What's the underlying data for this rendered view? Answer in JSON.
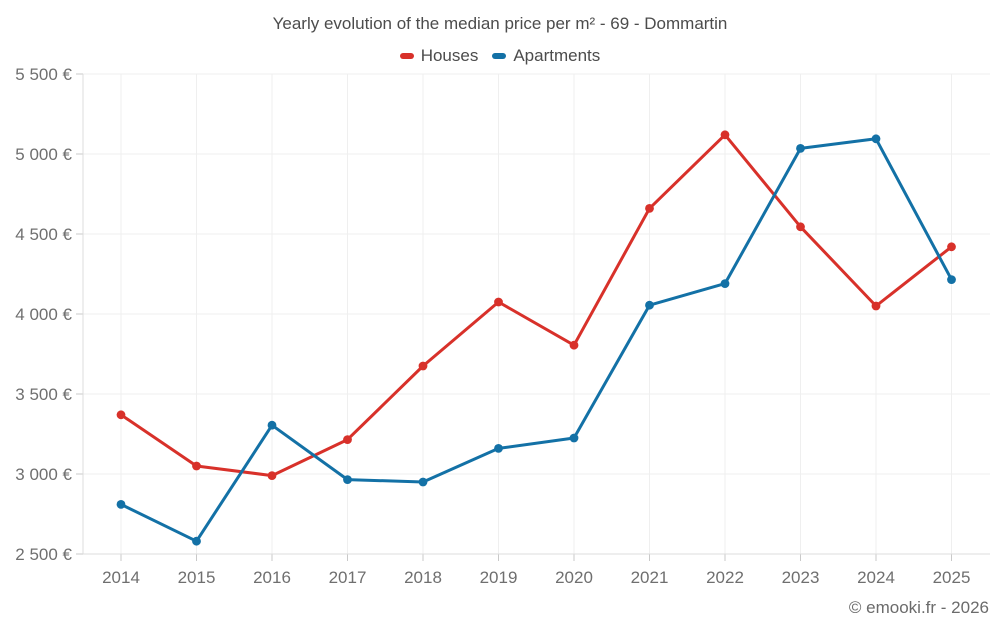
{
  "page": {
    "footer": "© emooki.fr - 2026"
  },
  "chart_data": {
    "type": "line",
    "title": "Yearly evolution of the median price per m² - 69 - Dommartin",
    "xlabel": "",
    "ylabel": "",
    "categories": [
      "2014",
      "2015",
      "2016",
      "2017",
      "2018",
      "2019",
      "2020",
      "2021",
      "2022",
      "2023",
      "2024",
      "2025"
    ],
    "series": [
      {
        "name": "Houses",
        "color": "#d8312a",
        "values": [
          3370,
          3050,
          2990,
          3215,
          3675,
          4075,
          3805,
          4660,
          5120,
          4545,
          4050,
          4420
        ]
      },
      {
        "name": "Apartments",
        "color": "#1371a6",
        "values": [
          2810,
          2580,
          3305,
          2965,
          2950,
          3160,
          3225,
          4055,
          4190,
          5035,
          5095,
          4215
        ]
      }
    ],
    "ylim": [
      2500,
      5500
    ],
    "ytick_step": 500,
    "ytick_labels": [
      "2 500 €",
      "3 000 €",
      "3 500 €",
      "4 000 €",
      "4 500 €",
      "5 000 €",
      "5 500 €"
    ],
    "grid": true,
    "legend_position": "top"
  }
}
